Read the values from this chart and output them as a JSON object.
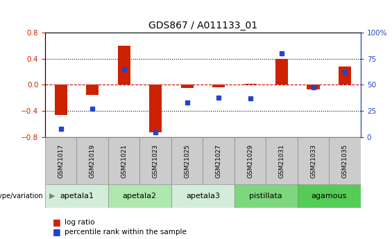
{
  "title": "GDS867 / A011133_01",
  "samples": [
    "GSM21017",
    "GSM21019",
    "GSM21021",
    "GSM21023",
    "GSM21025",
    "GSM21027",
    "GSM21029",
    "GSM21031",
    "GSM21033",
    "GSM21035"
  ],
  "log_ratio": [
    -0.46,
    -0.15,
    0.6,
    -0.72,
    -0.05,
    -0.04,
    0.02,
    0.4,
    -0.07,
    0.28
  ],
  "percentile_rank": [
    8,
    27,
    65,
    5,
    33,
    38,
    37,
    80,
    48,
    62
  ],
  "genotype_groups": [
    {
      "label": "apetala1",
      "indices": [
        0,
        1
      ],
      "color": "#d4edda"
    },
    {
      "label": "apetala2",
      "indices": [
        2,
        3
      ],
      "color": "#aee8ae"
    },
    {
      "label": "apetala3",
      "indices": [
        4,
        5
      ],
      "color": "#d4edda"
    },
    {
      "label": "pistillata",
      "indices": [
        6,
        7
      ],
      "color": "#7dd87d"
    },
    {
      "label": "agamous",
      "indices": [
        8,
        9
      ],
      "color": "#55cc55"
    }
  ],
  "ylim_left": [
    -0.8,
    0.8
  ],
  "ylim_right": [
    0,
    100
  ],
  "yticks_left": [
    -0.8,
    -0.4,
    0.0,
    0.4,
    0.8
  ],
  "yticks_right": [
    0,
    25,
    50,
    75,
    100
  ],
  "ytick_labels_right": [
    "0",
    "25",
    "50",
    "75",
    "100%"
  ],
  "bar_color": "#cc2200",
  "dot_color": "#2244cc",
  "zero_line_color": "#cc0000",
  "grid_color": "#000000",
  "sample_box_color": "#cccccc",
  "sample_box_edge": "#888888"
}
